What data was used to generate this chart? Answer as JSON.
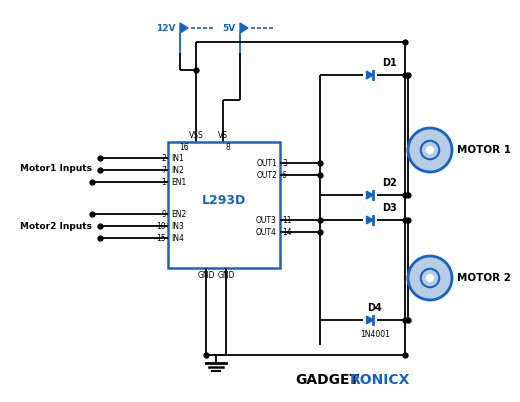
{
  "bg_color": "#ffffff",
  "BL": "#1565c0",
  "BK": "#000000",
  "chip_label": "L293D",
  "motor1_label": "MOTOR 1",
  "motor2_label": "MOTOR 2",
  "diode_note": "1N4001",
  "motor1_inputs_label": "Motor1 Inputs",
  "motor2_inputs_label": "Motor2 Inputs",
  "vcc1_label": "12V",
  "vcc2_label": "5V",
  "gadget_text": "GADGET",
  "ronicx_text": "RONICX"
}
